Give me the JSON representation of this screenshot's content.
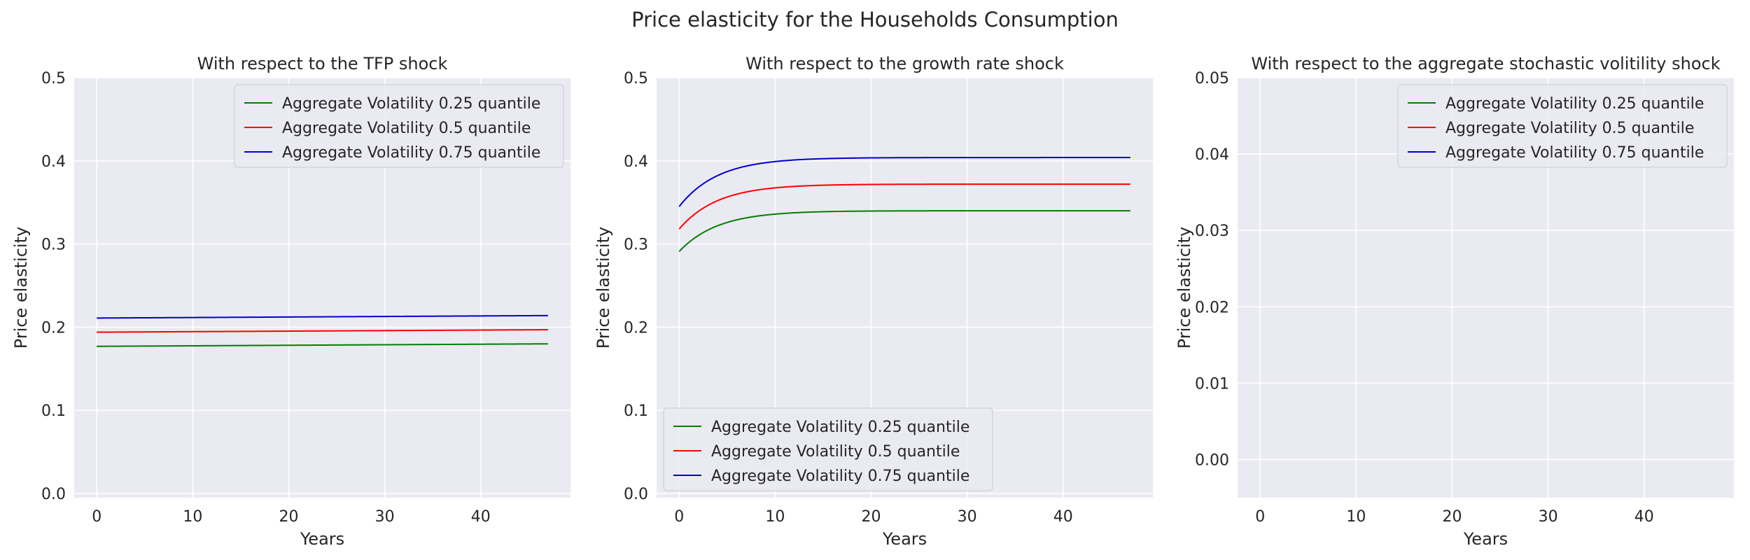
{
  "figure": {
    "title": "Price elasticity for the Households Consumption"
  },
  "chart_data": [
    {
      "type": "line",
      "title": "With respect to the TFP shock",
      "xlabel": "Years",
      "ylabel": "Price elasticity",
      "xlim": [
        -2.35,
        49.35
      ],
      "ylim": [
        -0.005,
        0.5
      ],
      "xticks": [
        0,
        10,
        20,
        30,
        40
      ],
      "yticks": [
        0.0,
        0.1,
        0.2,
        0.3,
        0.4,
        0.5
      ],
      "ytick_labels": [
        "0.0",
        "0.1",
        "0.2",
        "0.3",
        "0.4",
        "0.5"
      ],
      "grid": true,
      "legend_position": "upper-right",
      "series": [
        {
          "name": "Aggregate Volatility 0.25 quantile",
          "color": "#008000",
          "x_start": 0,
          "x_end": 47,
          "y_start": 0.177,
          "y_end": 0.18,
          "approach_rate": 0
        },
        {
          "name": "Aggregate Volatility 0.5 quantile",
          "color": "#ff0000",
          "x_start": 0,
          "x_end": 47,
          "y_start": 0.194,
          "y_end": 0.197,
          "approach_rate": 0
        },
        {
          "name": "Aggregate Volatility 0.75 quantile",
          "color": "#0000cd",
          "x_start": 0,
          "x_end": 47,
          "y_start": 0.211,
          "y_end": 0.214,
          "approach_rate": 0
        }
      ]
    },
    {
      "type": "line",
      "title": "With respect to the growth rate shock",
      "xlabel": "Years",
      "ylabel": "Price elasticity",
      "xlim": [
        -2.35,
        49.35
      ],
      "ylim": [
        -0.005,
        0.5
      ],
      "xticks": [
        0,
        10,
        20,
        30,
        40
      ],
      "yticks": [
        0.0,
        0.1,
        0.2,
        0.3,
        0.4,
        0.5
      ],
      "ytick_labels": [
        "0.0",
        "0.1",
        "0.2",
        "0.3",
        "0.4",
        "0.5"
      ],
      "grid": true,
      "legend_position": "lower-left",
      "series": [
        {
          "name": "Aggregate Volatility 0.25 quantile",
          "color": "#008000",
          "x_start": 0,
          "x_end": 47,
          "y_start": 0.291,
          "y_end": 0.34,
          "approach_rate": 0.25
        },
        {
          "name": "Aggregate Volatility 0.5 quantile",
          "color": "#ff0000",
          "x_start": 0,
          "x_end": 47,
          "y_start": 0.318,
          "y_end": 0.372,
          "approach_rate": 0.25
        },
        {
          "name": "Aggregate Volatility 0.75 quantile",
          "color": "#0000cd",
          "x_start": 0,
          "x_end": 47,
          "y_start": 0.345,
          "y_end": 0.404,
          "approach_rate": 0.25
        }
      ]
    },
    {
      "type": "line",
      "title": "With respect to the aggregate stochastic volitility shock",
      "xlabel": "Years",
      "ylabel": "Price elasticity",
      "xlim": [
        -2.35,
        49.35
      ],
      "ylim": [
        -0.005,
        0.05
      ],
      "xticks": [
        0,
        10,
        20,
        30,
        40
      ],
      "yticks": [
        0.0,
        0.01,
        0.02,
        0.03,
        0.04,
        0.05
      ],
      "ytick_labels": [
        "0.00",
        "0.01",
        "0.02",
        "0.03",
        "0.04",
        "0.05"
      ],
      "grid": true,
      "legend_position": "upper-right",
      "series": [
        {
          "name": "Aggregate Volatility 0.25 quantile",
          "color": "#008000",
          "x_start": 0,
          "x_end": 47,
          "y_start": 0.0,
          "y_end": 0.0,
          "approach_rate": 0,
          "visible": false
        },
        {
          "name": "Aggregate Volatility 0.5 quantile",
          "color": "#ff0000",
          "x_start": 0,
          "x_end": 47,
          "y_start": 0.0,
          "y_end": 0.0,
          "approach_rate": 0,
          "visible": false
        },
        {
          "name": "Aggregate Volatility 0.75 quantile",
          "color": "#0000cd",
          "x_start": 0,
          "x_end": 47,
          "y_start": 0.0,
          "y_end": 0.0,
          "approach_rate": 0,
          "visible": false
        }
      ]
    }
  ]
}
